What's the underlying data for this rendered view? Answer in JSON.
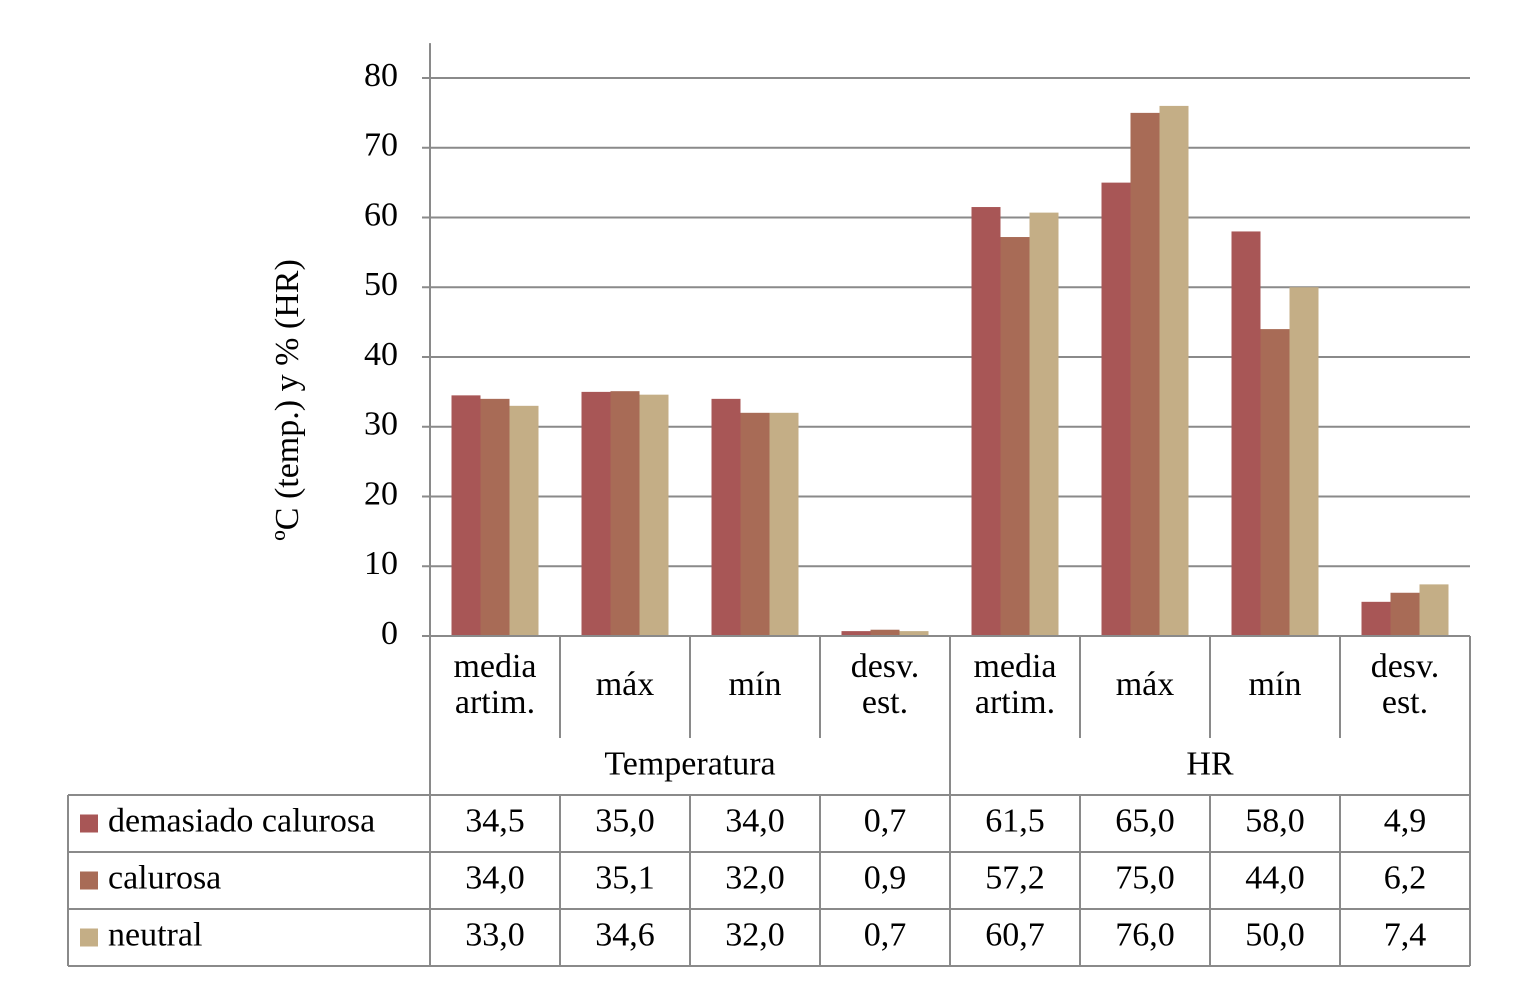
{
  "chart_data": {
    "type": "bar",
    "y_label": "ºC (temp.) y % (HR)",
    "categories": [
      [
        "media",
        "artim."
      ],
      [
        "máx"
      ],
      [
        "mín"
      ],
      [
        "desv.",
        "est."
      ],
      [
        "media",
        "artim."
      ],
      [
        "máx"
      ],
      [
        "mín"
      ],
      [
        "desv.",
        "est."
      ]
    ],
    "category_groups": [
      "Temperatura",
      "HR"
    ],
    "series": [
      {
        "name": "demasiado calurosa",
        "color": "#a85656",
        "values": [
          34.5,
          35.0,
          34.0,
          0.7,
          61.5,
          65.0,
          58.0,
          4.9
        ],
        "value_labels": [
          "34,5",
          "35,0",
          "34,0",
          "0,7",
          "61,5",
          "65,0",
          "58,0",
          "4,9"
        ]
      },
      {
        "name": "calurosa",
        "color": "#a86b56",
        "values": [
          34.0,
          35.1,
          32.0,
          0.9,
          57.2,
          75.0,
          44.0,
          6.2
        ],
        "value_labels": [
          "34,0",
          "35,1",
          "32,0",
          "0,9",
          "57,2",
          "75,0",
          "44,0",
          "6,2"
        ]
      },
      {
        "name": "neutral",
        "color": "#c4ae86",
        "values": [
          33.0,
          34.6,
          32.0,
          0.7,
          60.7,
          76.0,
          50.0,
          7.4
        ],
        "value_labels": [
          "33,0",
          "34,6",
          "32,0",
          "0,7",
          "60,7",
          "76,0",
          "50,0",
          "7,4"
        ]
      }
    ],
    "ylim": [
      0,
      85
    ],
    "yticks": [
      0,
      10,
      20,
      30,
      40,
      50,
      60,
      70,
      80
    ],
    "grid": true
  }
}
